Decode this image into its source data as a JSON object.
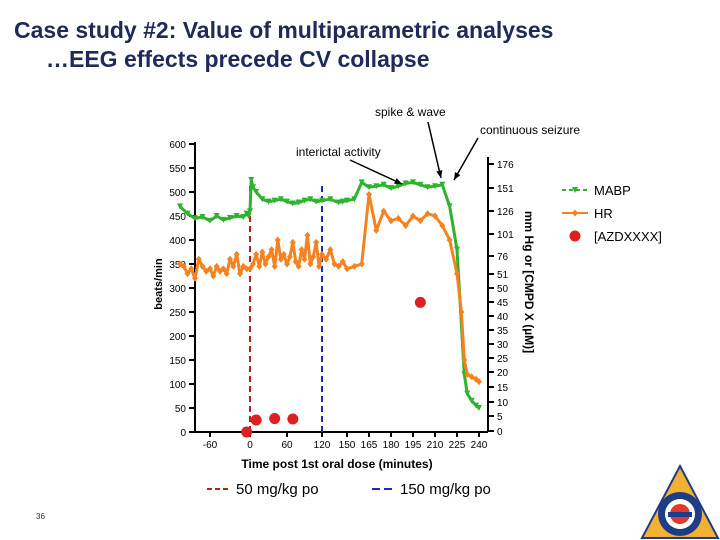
{
  "slide": {
    "title_line1": "Case study #2: Value of multiparametric analyses",
    "title_line2": "…EEG effects precede CV collapse",
    "page_number": "36"
  },
  "chart_data": {
    "type": "line",
    "xlabel": "Time post 1st oral dose (minutes)",
    "x_ticks": [
      "-60",
      "0",
      "60",
      "120",
      "150",
      "165",
      "180",
      "195",
      "210",
      "225",
      "240"
    ],
    "ylabel_left": "beats/min",
    "ylabel_right": "mm Hg or [CMPD X (µM)]",
    "ylim_left": [
      0,
      600
    ],
    "y_ticks_left": [
      0,
      50,
      100,
      150,
      200,
      250,
      300,
      350,
      400,
      450,
      500,
      550,
      600
    ],
    "y_ticks_right_upper": [
      "176",
      "151",
      "126",
      "101",
      "76"
    ],
    "y_ticks_right_lower": [
      "51",
      "50",
      "45",
      "40",
      "35",
      "30",
      "25",
      "20",
      "15",
      "10",
      "5",
      "0"
    ],
    "legend_position": "right",
    "legend": [
      "MABP",
      "HR",
      "[AZDXXXX]"
    ],
    "colors": {
      "MABP": "#2db32d",
      "HR": "#f58220",
      "conc": "#e02020",
      "dose50": "#b22222",
      "dose150": "#1a2bb8",
      "annot": "#000000"
    },
    "series": [
      {
        "name": "MABP",
        "x": [
          -100,
          -90,
          -80,
          -70,
          -60,
          -50,
          -40,
          -30,
          -20,
          -10,
          -5,
          -2,
          0,
          2,
          5,
          10,
          20,
          30,
          40,
          50,
          60,
          70,
          80,
          90,
          100,
          110,
          120,
          130,
          140,
          145,
          150,
          155,
          160,
          165,
          170,
          175,
          180,
          185,
          190,
          195,
          200,
          205,
          210,
          215,
          220,
          225,
          230,
          232,
          235,
          238,
          240
        ],
        "left_y": [
          470,
          455,
          445,
          448,
          440,
          450,
          442,
          446,
          450,
          448,
          455,
          450,
          460,
          525,
          510,
          500,
          485,
          480,
          482,
          485,
          480,
          476,
          478,
          482,
          485,
          480,
          482,
          485,
          478,
          480,
          482,
          485,
          520,
          510,
          512,
          515,
          508,
          512,
          518,
          520,
          515,
          510,
          512,
          515,
          470,
          380,
          120,
          80,
          65,
          55,
          50
        ]
      },
      {
        "name": "HR",
        "x": [
          -100,
          -95,
          -90,
          -85,
          -80,
          -75,
          -70,
          -65,
          -60,
          -55,
          -50,
          -45,
          -40,
          -35,
          -30,
          -25,
          -20,
          -15,
          -10,
          -5,
          0,
          5,
          10,
          15,
          20,
          25,
          30,
          35,
          40,
          45,
          50,
          55,
          60,
          65,
          70,
          75,
          80,
          85,
          90,
          95,
          100,
          105,
          110,
          115,
          120,
          125,
          130,
          135,
          140,
          145,
          150,
          155,
          160,
          165,
          170,
          175,
          180,
          185,
          190,
          195,
          200,
          205,
          210,
          215,
          220,
          225,
          228,
          230,
          232,
          235,
          238,
          240
        ],
        "left_y": [
          350,
          345,
          330,
          340,
          320,
          360,
          345,
          335,
          340,
          325,
          345,
          335,
          340,
          330,
          360,
          345,
          370,
          330,
          345,
          340,
          340,
          350,
          370,
          345,
          375,
          350,
          365,
          380,
          345,
          400,
          360,
          370,
          350,
          365,
          395,
          355,
          345,
          380,
          360,
          410,
          350,
          365,
          395,
          345,
          370,
          360,
          380,
          350,
          345,
          355,
          340,
          345,
          350,
          495,
          420,
          460,
          440,
          445,
          430,
          450,
          440,
          455,
          450,
          430,
          400,
          330,
          250,
          150,
          120,
          115,
          110,
          105
        ]
      }
    ],
    "concentration_points": {
      "name": "[AZDXXXX]",
      "x": [
        -5,
        10,
        40,
        70,
        200
      ],
      "left_y": [
        0,
        25,
        28,
        27,
        270
      ]
    },
    "dose_lines": [
      {
        "label": "50 mg/kg po",
        "x": 0
      },
      {
        "label": "150 mg/kg po",
        "x": 120
      }
    ],
    "annotations": [
      {
        "text": "interictal activity",
        "x": 130,
        "y": 555
      },
      {
        "text": "spike & wave",
        "x": 180,
        "y": 600
      },
      {
        "text": "continuous seizure",
        "x": 240,
        "y": 580
      }
    ]
  }
}
